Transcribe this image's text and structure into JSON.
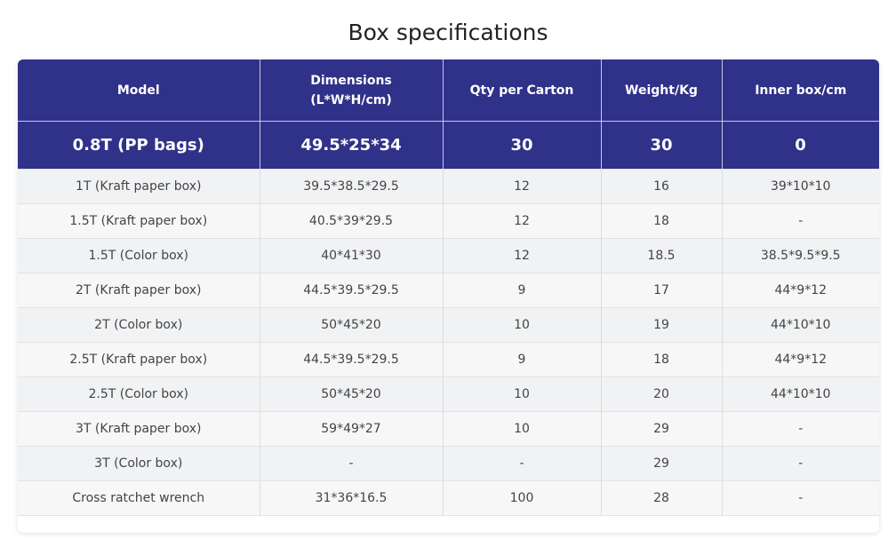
{
  "title": "Box specifications",
  "table": {
    "header": [
      "Model",
      "Dimensions (L*W*H/cm)",
      "Qty per Carton",
      "Weight/Kg",
      "Inner box/cm"
    ],
    "featured_row": [
      "0.8T (PP bags)",
      "49.5*25*34",
      "30",
      "30",
      "0"
    ],
    "rows": [
      [
        "1T (Kraft paper box)",
        "39.5*38.5*29.5",
        "12",
        "16",
        "39*10*10"
      ],
      [
        "1.5T (Kraft paper box)",
        "40.5*39*29.5",
        "12",
        "18",
        "-"
      ],
      [
        "1.5T (Color box)",
        "40*41*30",
        "12",
        "18.5",
        "38.5*9.5*9.5"
      ],
      [
        "2T (Kraft paper box)",
        "44.5*39.5*29.5",
        "9",
        "17",
        "44*9*12"
      ],
      [
        "2T (Color box)",
        "50*45*20",
        "10",
        "19",
        "44*10*10"
      ],
      [
        "2.5T (Kraft paper box)",
        "44.5*39.5*29.5",
        "9",
        "18",
        "44*9*12"
      ],
      [
        "2.5T (Color box)",
        "50*45*20",
        "10",
        "20",
        "44*10*10"
      ],
      [
        "3T (Kraft paper box)",
        "59*49*27",
        "10",
        "29",
        "-"
      ],
      [
        "3T (Color box)",
        "-",
        "-",
        "29",
        "-"
      ],
      [
        "Cross ratchet wrench",
        "31*36*16.5",
        "100",
        "28",
        "-"
      ]
    ]
  }
}
